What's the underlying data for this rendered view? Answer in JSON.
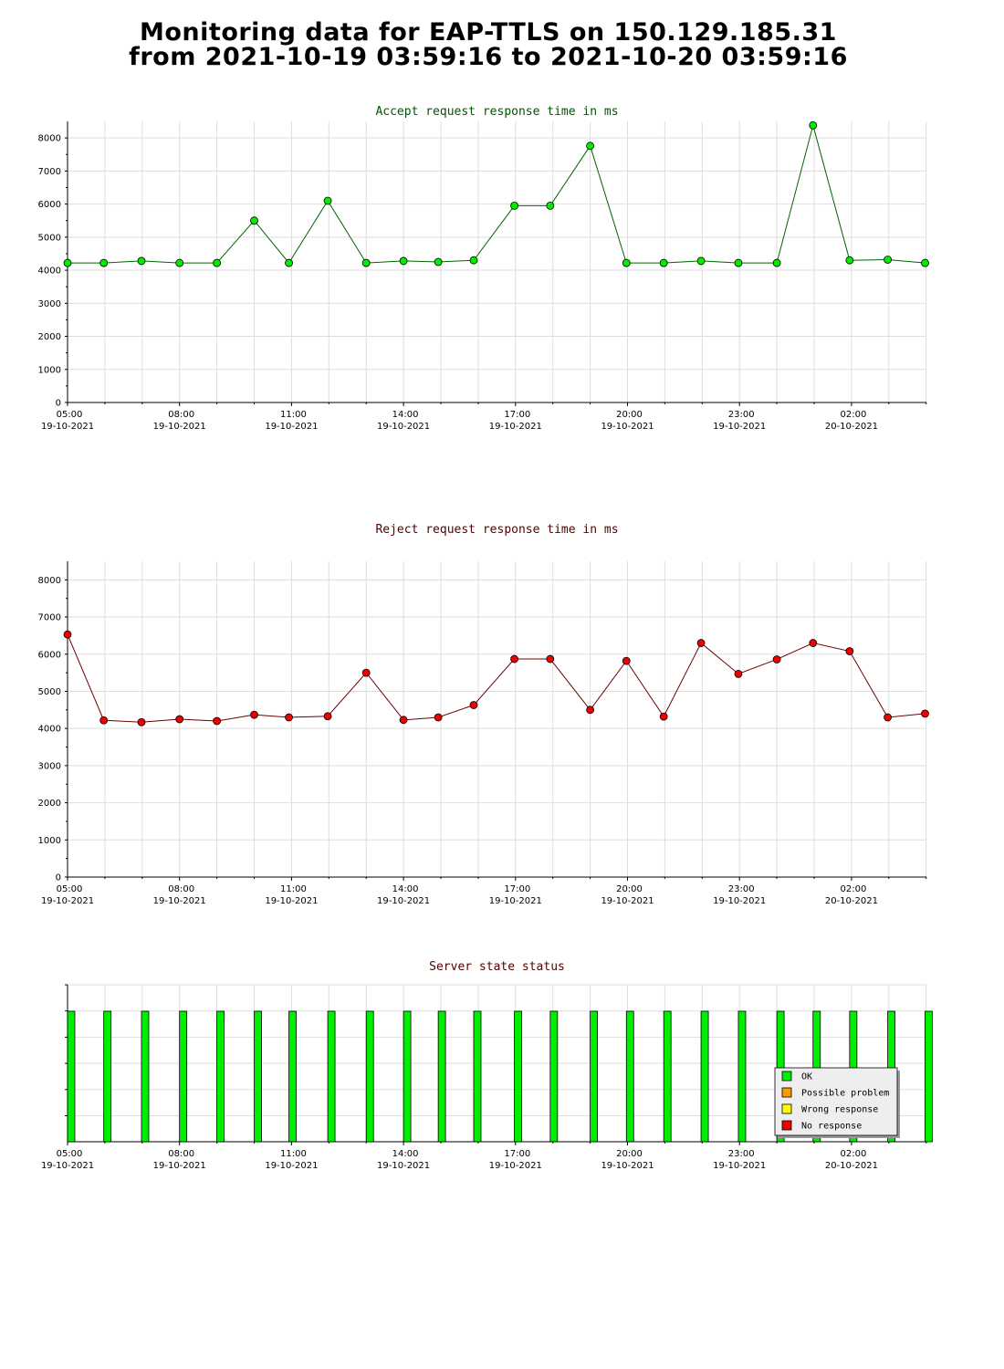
{
  "page": {
    "title_line1": "Monitoring data for EAP-TTLS on 150.129.185.31",
    "title_line2": "from 2021-10-19 03:59:16 to 2021-10-20 03:59:16"
  },
  "colors": {
    "accept_title": "#005500",
    "reject_title": "#550000",
    "status_title": "#550000",
    "accept_line": "#006400",
    "accept_marker": "#00ee00",
    "reject_line": "#6b0000",
    "reject_marker": "#ee0000",
    "ok": "#00ee00",
    "possible_problem": "#ff9900",
    "wrong_response": "#ffff00",
    "no_response": "#ee0000",
    "grid": "#dddddd"
  },
  "chart_data": [
    {
      "type": "line",
      "title": "Accept request response time in ms",
      "ylim": [
        0,
        8500
      ],
      "yticks": [
        "0",
        "1000",
        "2000",
        "3000",
        "4000",
        "5000",
        "6000",
        "7000",
        "8000"
      ],
      "xticks": [
        {
          "time": "05:00",
          "date": "19-10-2021"
        },
        {
          "time": "08:00",
          "date": "19-10-2021"
        },
        {
          "time": "11:00",
          "date": "19-10-2021"
        },
        {
          "time": "14:00",
          "date": "19-10-2021"
        },
        {
          "time": "17:00",
          "date": "19-10-2021"
        },
        {
          "time": "20:00",
          "date": "19-10-2021"
        },
        {
          "time": "23:00",
          "date": "19-10-2021"
        },
        {
          "time": "02:00",
          "date": "20-10-2021"
        }
      ],
      "x_hours": [
        5.0,
        5.97,
        6.98,
        8.0,
        9.0,
        10.0,
        10.93,
        11.97,
        13.0,
        14.0,
        14.93,
        15.88,
        16.97,
        17.93,
        19.0,
        19.97,
        20.97,
        21.97,
        22.97,
        24.0,
        24.97,
        25.95,
        26.97,
        27.97
      ],
      "values": [
        4220,
        4220,
        4280,
        4220,
        4220,
        5500,
        4220,
        6100,
        4220,
        4280,
        4250,
        4300,
        5950,
        5950,
        7760,
        4220,
        4220,
        4280,
        4220,
        4220,
        8380,
        4300,
        4320,
        4220
      ],
      "grid": true
    },
    {
      "type": "line",
      "title": "Reject request response time in ms",
      "ylim": [
        0,
        8500
      ],
      "yticks": [
        "0",
        "1000",
        "2000",
        "3000",
        "4000",
        "5000",
        "6000",
        "7000",
        "8000"
      ],
      "xticks": [
        {
          "time": "05:00",
          "date": "19-10-2021"
        },
        {
          "time": "08:00",
          "date": "19-10-2021"
        },
        {
          "time": "11:00",
          "date": "19-10-2021"
        },
        {
          "time": "14:00",
          "date": "19-10-2021"
        },
        {
          "time": "17:00",
          "date": "19-10-2021"
        },
        {
          "time": "20:00",
          "date": "19-10-2021"
        },
        {
          "time": "23:00",
          "date": "19-10-2021"
        },
        {
          "time": "02:00",
          "date": "20-10-2021"
        }
      ],
      "x_hours": [
        5.0,
        5.97,
        6.98,
        8.0,
        9.0,
        10.0,
        10.93,
        11.97,
        13.0,
        14.0,
        14.93,
        15.88,
        16.97,
        17.93,
        19.0,
        19.97,
        20.97,
        21.97,
        22.97,
        24.0,
        24.97,
        25.95,
        26.97,
        27.97
      ],
      "values": [
        6530,
        4220,
        4170,
        4250,
        4200,
        4370,
        4300,
        4330,
        5500,
        4230,
        4300,
        4630,
        5870,
        5870,
        4500,
        5820,
        4320,
        6300,
        5470,
        5860,
        6300,
        6080,
        4300,
        4400
      ],
      "grid": true
    },
    {
      "type": "bar",
      "title": "Server state status",
      "x_hours": [
        5.0,
        5.97,
        6.98,
        8.0,
        9.0,
        10.0,
        10.93,
        11.97,
        13.0,
        14.0,
        14.93,
        15.88,
        16.97,
        17.93,
        19.0,
        19.97,
        20.97,
        21.97,
        22.97,
        24.0,
        24.97,
        25.95,
        26.97,
        27.97
      ],
      "states": [
        "OK",
        "OK",
        "OK",
        "OK",
        "OK",
        "OK",
        "OK",
        "OK",
        "OK",
        "OK",
        "OK",
        "OK",
        "OK",
        "OK",
        "OK",
        "OK",
        "OK",
        "OK",
        "OK",
        "OK",
        "OK",
        "OK",
        "OK",
        "OK"
      ],
      "xticks": [
        {
          "time": "05:00",
          "date": "19-10-2021"
        },
        {
          "time": "08:00",
          "date": "19-10-2021"
        },
        {
          "time": "11:00",
          "date": "19-10-2021"
        },
        {
          "time": "14:00",
          "date": "19-10-2021"
        },
        {
          "time": "17:00",
          "date": "19-10-2021"
        },
        {
          "time": "20:00",
          "date": "19-10-2021"
        },
        {
          "time": "23:00",
          "date": "19-10-2021"
        },
        {
          "time": "02:00",
          "date": "20-10-2021"
        }
      ],
      "legend": [
        "OK",
        "Possible problem",
        "Wrong response",
        "No response"
      ],
      "legend_placement": "bottom-right",
      "grid": true
    }
  ]
}
